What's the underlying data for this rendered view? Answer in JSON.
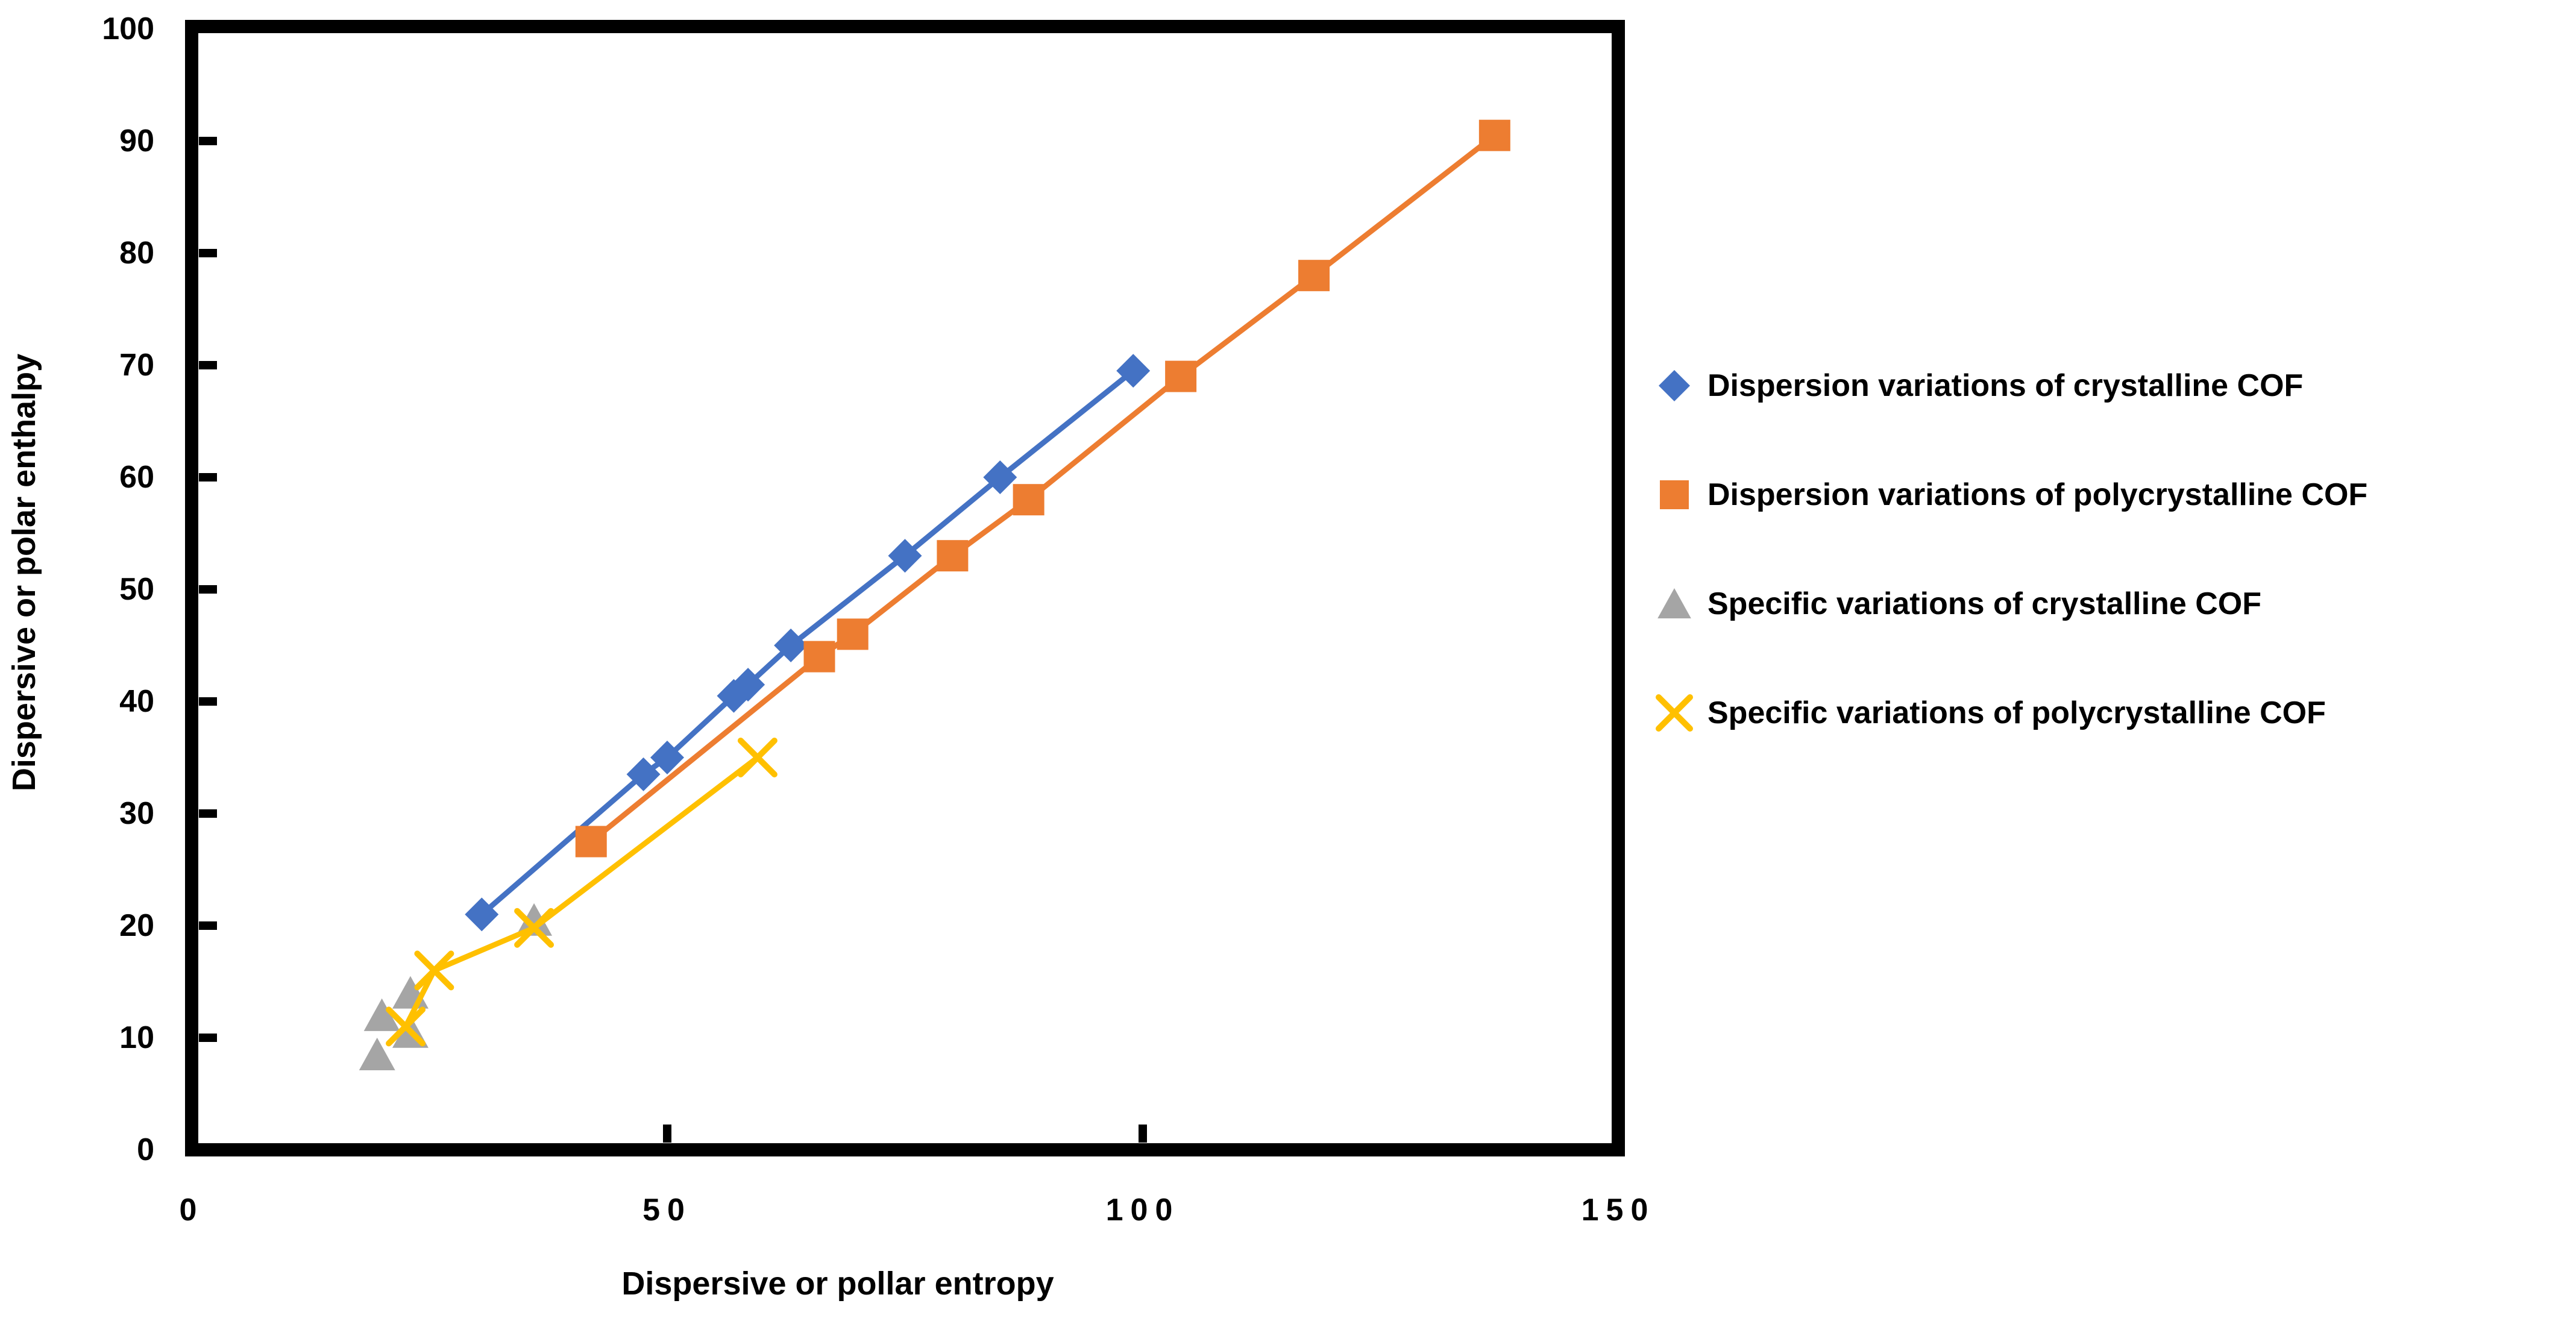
{
  "chart_data": {
    "type": "scatter",
    "title": "",
    "xlabel": "Dispersive or pollar entropy",
    "ylabel": "Dispersive or polar enthalpy",
    "xlim": [
      0,
      150
    ],
    "ylim": [
      0,
      100
    ],
    "x_ticks": [
      0,
      50,
      100,
      150
    ],
    "y_ticks": [
      0,
      10,
      20,
      30,
      40,
      50,
      60,
      70,
      80,
      90,
      100
    ],
    "grid": false,
    "legend_position": "right",
    "axis_color": "#000000",
    "background_color": "#ffffff",
    "series": [
      {
        "name": "Dispersion variations of crystalline COF",
        "color": "#4472C4",
        "marker": "diamond",
        "line": true,
        "points": [
          [
            30.5,
            21
          ],
          [
            47.5,
            33.5
          ],
          [
            50,
            35
          ],
          [
            57,
            40.5
          ],
          [
            58.5,
            41.5
          ],
          [
            63,
            45
          ],
          [
            75,
            53
          ],
          [
            85,
            60
          ],
          [
            99,
            69.5
          ]
        ]
      },
      {
        "name": "Dispersion variations of polycrystalline COF",
        "color": "#ED7D31",
        "marker": "square",
        "line": true,
        "points": [
          [
            42,
            27.5
          ],
          [
            66,
            44
          ],
          [
            69.5,
            46
          ],
          [
            80,
            53
          ],
          [
            88,
            58
          ],
          [
            104,
            69
          ],
          [
            118,
            78
          ],
          [
            137,
            90.5
          ]
        ]
      },
      {
        "name": "Specific variations of crystalline COF",
        "color": "#A5A5A5",
        "marker": "triangle",
        "line": false,
        "points": [
          [
            19.5,
            8.5
          ],
          [
            20,
            12
          ],
          [
            23,
            10.5
          ],
          [
            23,
            14
          ],
          [
            36,
            20.5
          ]
        ]
      },
      {
        "name": "Specific variations of polycrystalline COF",
        "color": "#FFC000",
        "marker": "x",
        "line": true,
        "points": [
          [
            22.5,
            11
          ],
          [
            25.5,
            16
          ],
          [
            36,
            19.8
          ],
          [
            59.5,
            35
          ]
        ]
      }
    ]
  }
}
